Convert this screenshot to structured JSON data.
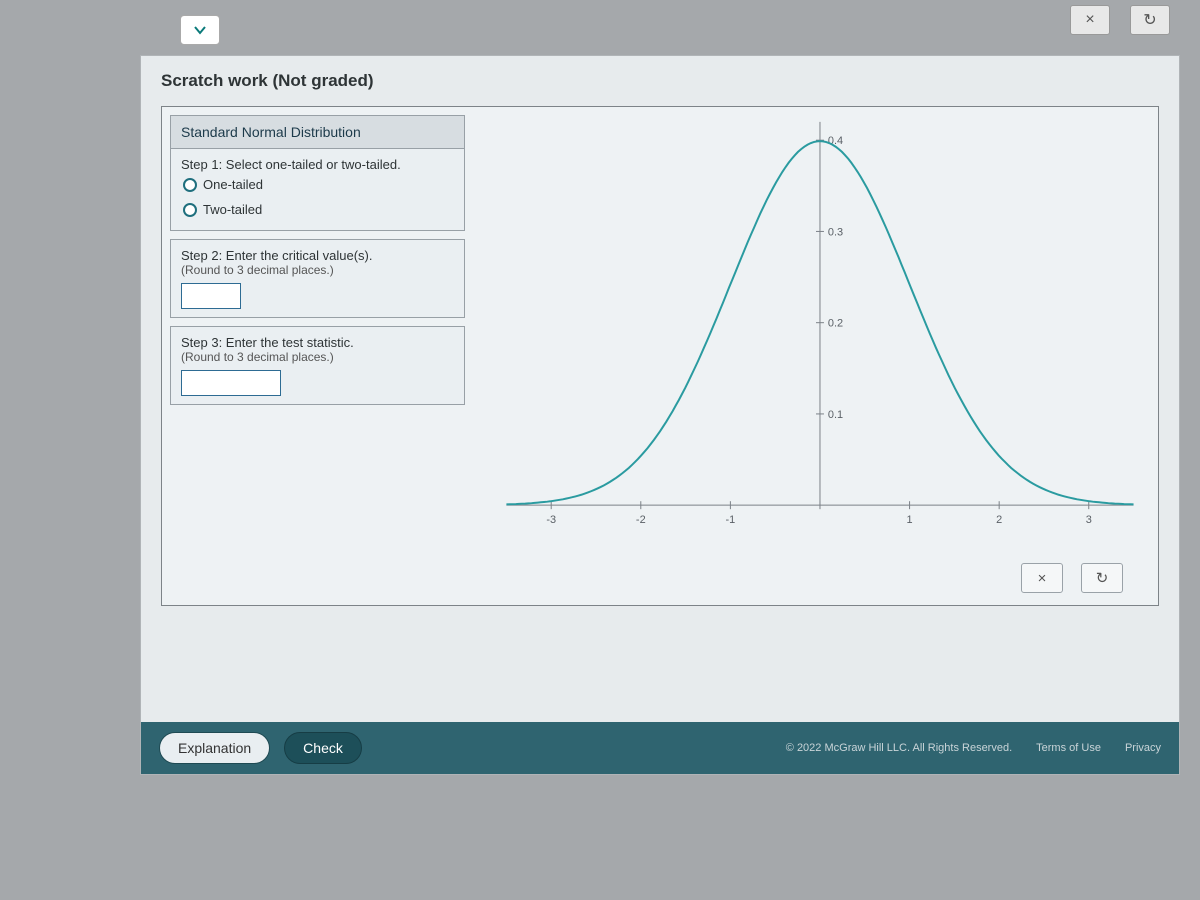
{
  "toolbar": {
    "close_glyph": "×",
    "reset_glyph": "↻"
  },
  "scratch_title": "Scratch work (Not graded)",
  "controls": {
    "title": "Standard Normal Distribution",
    "step1": {
      "label": "Step 1: Select one-tailed or two-tailed.",
      "options": [
        "One-tailed",
        "Two-tailed"
      ]
    },
    "step2": {
      "label": "Step 2: Enter the critical value(s).",
      "hint": "(Round to 3 decimal places.)",
      "value": ""
    },
    "step3": {
      "label": "Step 3: Enter the test statistic.",
      "hint": "(Round to 3 decimal places.)",
      "value": ""
    }
  },
  "chart": {
    "type": "line",
    "x_min": -3.5,
    "x_max": 3.5,
    "y_min": 0,
    "y_max": 0.42,
    "x_ticks": [
      -3,
      -2,
      -1,
      0,
      1,
      2,
      3
    ],
    "y_ticks": [
      0.1,
      0.2,
      0.3,
      0.4
    ],
    "y_tick_labels": [
      "0.1",
      "0.2",
      "0.3",
      "0.4"
    ],
    "curve_color": "#2a9ba0",
    "axis_color": "#7b8187",
    "bg_color": "#eef2f4",
    "tick_font_size": 11
  },
  "panel_buttons": {
    "close_glyph": "×",
    "reset_glyph": "↻"
  },
  "footer": {
    "explanation_label": "Explanation",
    "check_label": "Check",
    "copyright": "© 2022 McGraw Hill LLC. All Rights Reserved.",
    "terms_label": "Terms of Use",
    "privacy_label": "Privacy"
  }
}
